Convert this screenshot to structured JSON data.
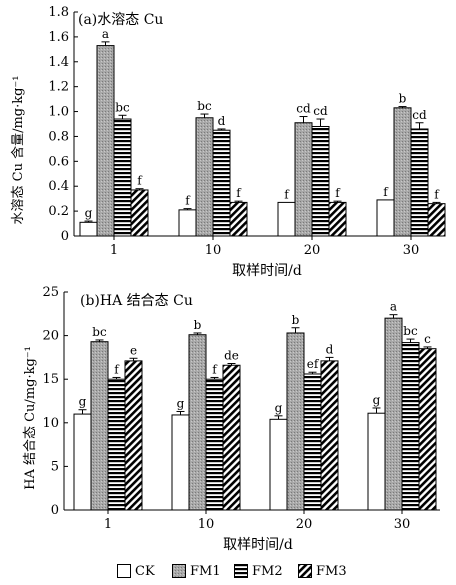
{
  "chart_data": [
    {
      "type": "bar",
      "title": "(a)水溶态 Cu",
      "xlabel": "取样时间/d",
      "ylabel": "水溶态 Cu 含量/mg·kg⁻¹",
      "categories": [
        "1",
        "10",
        "20",
        "30"
      ],
      "ylim": [
        0,
        1.8
      ],
      "yticks": [
        "0",
        "0.2",
        "0.4",
        "0.6",
        "0.8",
        "1.0",
        "1.2",
        "1.4",
        "1.6",
        "1.8"
      ],
      "series": [
        {
          "name": "CK",
          "values": [
            0.11,
            0.21,
            0.27,
            0.29
          ],
          "errors": [
            0.01,
            0.01,
            0.0,
            0.0
          ],
          "labels": [
            "g",
            "f",
            "f",
            "f"
          ]
        },
        {
          "name": "FM1",
          "values": [
            1.53,
            0.95,
            0.91,
            1.03
          ],
          "errors": [
            0.03,
            0.03,
            0.05,
            0.01
          ],
          "labels": [
            "a",
            "bc",
            "cd",
            "b"
          ]
        },
        {
          "name": "FM2",
          "values": [
            0.94,
            0.85,
            0.88,
            0.86
          ],
          "errors": [
            0.03,
            0.01,
            0.06,
            0.05
          ],
          "labels": [
            "bc",
            "d",
            "cd",
            "cd"
          ]
        },
        {
          "name": "FM3",
          "values": [
            0.37,
            0.27,
            0.27,
            0.26
          ],
          "errors": [
            0.01,
            0.01,
            0.01,
            0.01
          ],
          "labels": [
            "f",
            "f",
            "f",
            "f"
          ]
        }
      ]
    },
    {
      "type": "bar",
      "title": "(b)HA 结合态 Cu",
      "xlabel": "取样时间/d",
      "ylabel": "HA 结合态 Cu/mg·kg⁻¹",
      "categories": [
        "1",
        "10",
        "20",
        "30"
      ],
      "ylim": [
        0,
        25
      ],
      "yticks": [
        "0",
        "5",
        "10",
        "15",
        "20",
        "25"
      ],
      "series": [
        {
          "name": "CK",
          "values": [
            11.0,
            10.9,
            10.4,
            11.1
          ],
          "errors": [
            0.5,
            0.4,
            0.4,
            0.6
          ],
          "labels": [
            "g",
            "g",
            "g",
            "g"
          ]
        },
        {
          "name": "FM1",
          "values": [
            19.3,
            20.1,
            20.3,
            22.0
          ],
          "errors": [
            0.2,
            0.2,
            0.6,
            0.4
          ],
          "labels": [
            "bc",
            "b",
            "b",
            "a"
          ]
        },
        {
          "name": "FM2",
          "values": [
            15.0,
            15.0,
            15.6,
            19.2
          ],
          "errors": [
            0.2,
            0.2,
            0.2,
            0.4
          ],
          "labels": [
            "f",
            "f",
            "ef",
            "bc"
          ]
        },
        {
          "name": "FM3",
          "values": [
            17.1,
            16.6,
            17.1,
            18.5
          ],
          "errors": [
            0.3,
            0.2,
            0.4,
            0.2
          ],
          "labels": [
            "e",
            "de",
            "d",
            "c"
          ]
        }
      ]
    }
  ],
  "legend": [
    {
      "name": "CK",
      "pattern": "white"
    },
    {
      "name": "FM1",
      "pattern": "gray"
    },
    {
      "name": "FM2",
      "pattern": "horizontal"
    },
    {
      "name": "FM3",
      "pattern": "diagonal"
    }
  ]
}
